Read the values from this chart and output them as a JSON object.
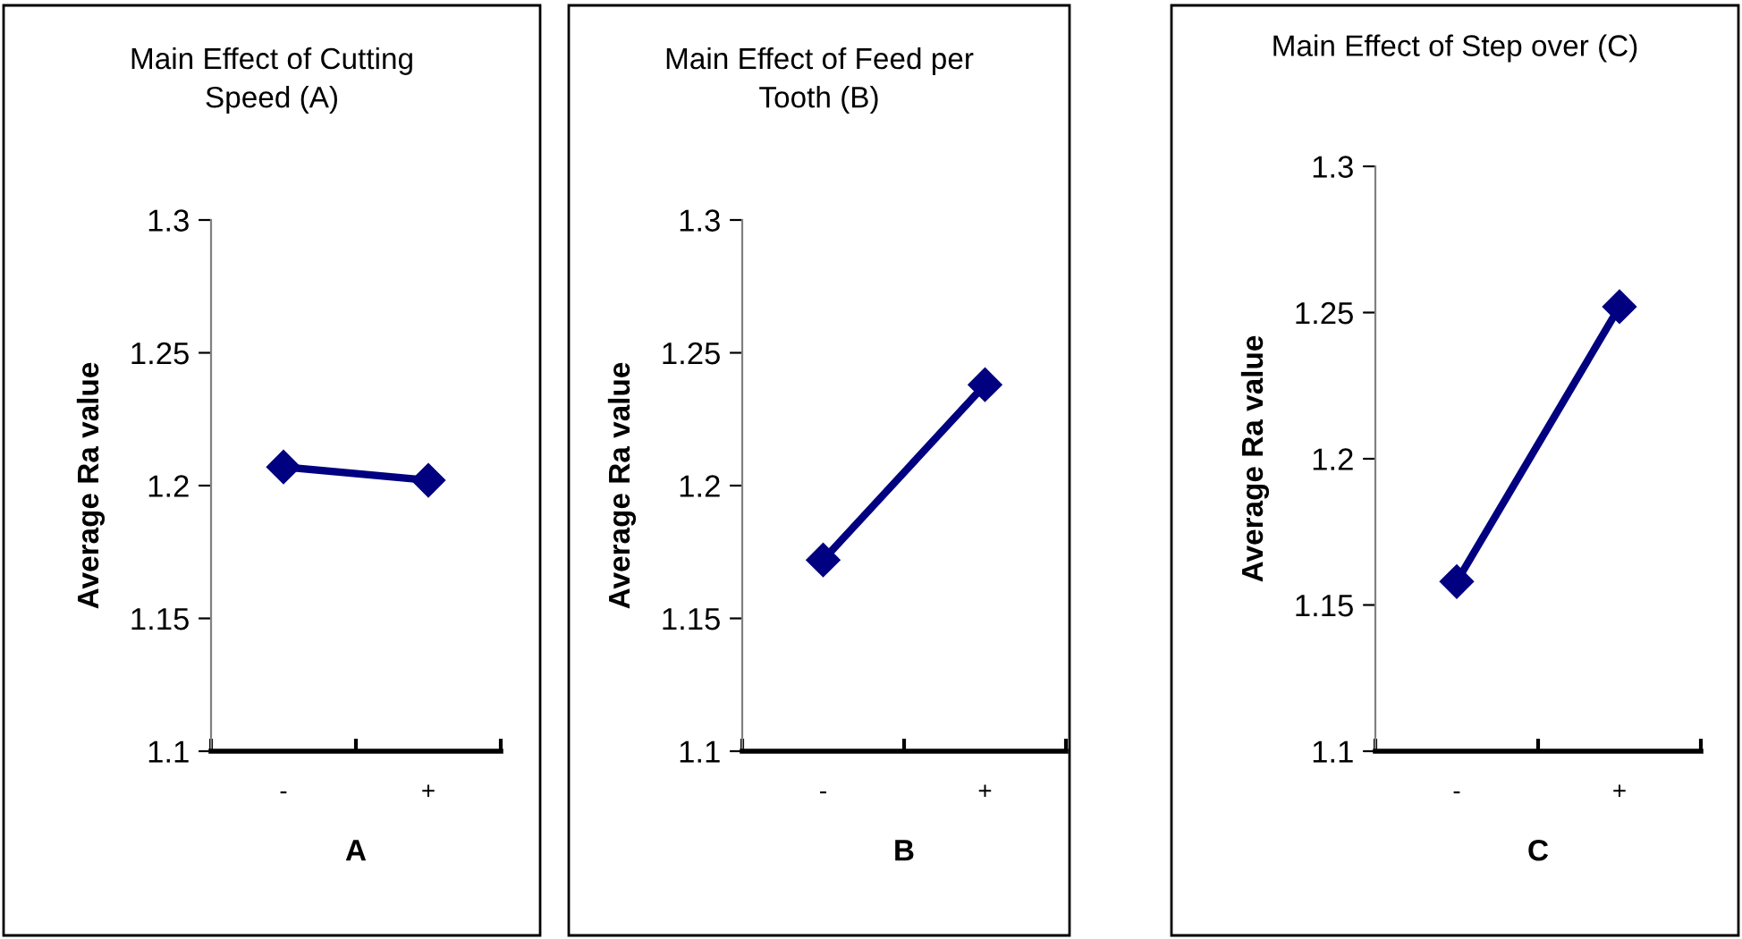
{
  "chart_data": [
    {
      "type": "line",
      "title": "Main Effect of Cutting\nSpeed (A)",
      "xlabel": "A",
      "ylabel": "Average Ra value",
      "categories": [
        "-",
        "+"
      ],
      "series": [
        {
          "color": "#000080",
          "values": [
            1.207,
            1.202
          ]
        }
      ],
      "ylim": [
        1.1,
        1.3
      ],
      "yticks": [
        1.1,
        1.15,
        1.2,
        1.25,
        1.3
      ],
      "marker": "diamond",
      "grid": false
    },
    {
      "type": "line",
      "title": "Main Effect of Feed per\nTooth (B)",
      "xlabel": "B",
      "ylabel": "Average Ra value",
      "categories": [
        "-",
        "+"
      ],
      "series": [
        {
          "color": "#000080",
          "values": [
            1.172,
            1.238
          ]
        }
      ],
      "ylim": [
        1.1,
        1.3
      ],
      "yticks": [
        1.1,
        1.15,
        1.2,
        1.25,
        1.3
      ],
      "marker": "diamond",
      "grid": false
    },
    {
      "type": "line",
      "title": "Main Effect of Step over (C)",
      "xlabel": "C",
      "ylabel": "Average Ra value",
      "categories": [
        "-",
        "+"
      ],
      "series": [
        {
          "color": "#000080",
          "values": [
            1.158,
            1.252
          ]
        }
      ],
      "ylim": [
        1.1,
        1.3
      ],
      "yticks": [
        1.1,
        1.15,
        1.2,
        1.25,
        1.3
      ],
      "marker": "diamond",
      "grid": false
    }
  ]
}
